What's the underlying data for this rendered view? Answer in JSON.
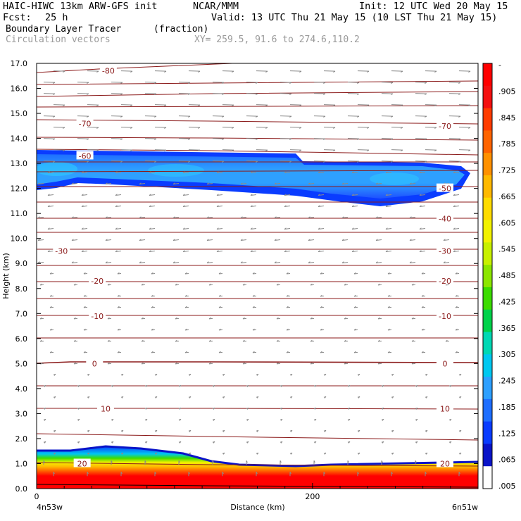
{
  "header": {
    "model": "HAIC-HIWC 13km ARW-GFS init",
    "org": "NCAR/MMM",
    "init": "Init: 12 UTC Wed 20 May 15",
    "fcst_label": "Fcst:",
    "fcst_value": "25 h",
    "valid": "Valid: 13 UTC Thu 21 May 15 (10 LST Thu 21 May 15)",
    "field": "Boundary Layer Tracer",
    "units": "(fraction)",
    "vectors": "Circulation vectors",
    "xy": "XY= 259.5, 91.6 to 274.6,110.2"
  },
  "colors": {
    "contour": "#8b1a1a",
    "vector": "#8a8a8a"
  },
  "chart_data": {
    "type": "heatmap",
    "ylabel": "Height (km)",
    "xlabel": "Distance (km)",
    "ylim": [
      0,
      17
    ],
    "y_ticks": [
      "0.0",
      "1.0",
      "2.0",
      "3.0",
      "4.0",
      "5.0",
      "6.0",
      "7.0",
      "8.0",
      "9.0",
      "10.0",
      "11.0",
      "12.0",
      "13.0",
      "14.0",
      "15.0",
      "16.0",
      "17.0"
    ],
    "x_ticks": [
      "0",
      "200"
    ],
    "x_start_label": "4n53w",
    "x_end_label": "6n51w",
    "xlim_km": [
      0,
      320
    ],
    "colorbar": {
      "labels": [
        "-",
        ".905",
        ".845",
        ".785",
        ".725",
        ".665",
        ".605",
        ".545",
        ".485",
        ".425",
        ".365",
        ".305",
        ".245",
        ".185",
        ".125",
        ".065",
        ".005"
      ],
      "colors": [
        "#ff0000",
        "#f41010",
        "#ff3c00",
        "#ff6400",
        "#ff9100",
        "#ffb900",
        "#ffdc00",
        "#f2f200",
        "#c8f000",
        "#8ce600",
        "#3cdc00",
        "#00d24b",
        "#00d8b4",
        "#00c8f0",
        "#2ea0ff",
        "#1e6eff",
        "#0a3cff",
        "#0a14c8",
        "#ffffff"
      ]
    },
    "contour_labels": [
      {
        "text": "-80",
        "x_km": 52,
        "y_km": 16.7
      },
      {
        "text": "-70",
        "x_km": 35,
        "y_km": 14.6
      },
      {
        "text": "-70",
        "x_km": 296,
        "y_km": 14.5
      },
      {
        "text": "-60",
        "x_km": 35,
        "y_km": 13.3
      },
      {
        "text": "-50",
        "x_km": 296,
        "y_km": 12.0
      },
      {
        "text": "-40",
        "x_km": 296,
        "y_km": 10.8
      },
      {
        "text": "-30",
        "x_km": 18,
        "y_km": 9.5
      },
      {
        "text": "-30",
        "x_km": 296,
        "y_km": 9.5
      },
      {
        "text": "-20",
        "x_km": 44,
        "y_km": 8.3
      },
      {
        "text": "-20",
        "x_km": 296,
        "y_km": 8.3
      },
      {
        "text": "-10",
        "x_km": 44,
        "y_km": 6.9
      },
      {
        "text": "-10",
        "x_km": 296,
        "y_km": 6.9
      },
      {
        "text": "0",
        "x_km": 42,
        "y_km": 5.0
      },
      {
        "text": "0",
        "x_km": 296,
        "y_km": 5.0
      },
      {
        "text": "10",
        "x_km": 50,
        "y_km": 3.2
      },
      {
        "text": "10",
        "x_km": 296,
        "y_km": 3.2
      },
      {
        "text": "20",
        "x_km": 33,
        "y_km": 1.0
      },
      {
        "text": "20",
        "x_km": 296,
        "y_km": 1.0
      }
    ]
  }
}
